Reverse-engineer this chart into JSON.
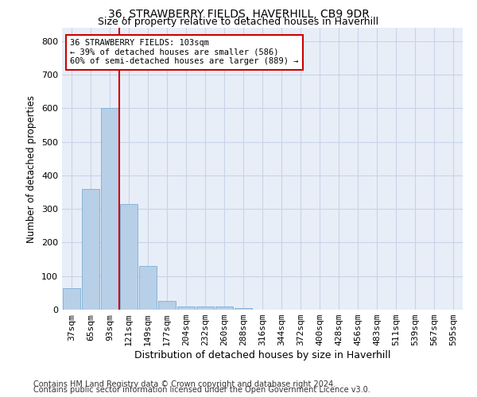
{
  "title": "36, STRAWBERRY FIELDS, HAVERHILL, CB9 9DR",
  "subtitle": "Size of property relative to detached houses in Haverhill",
  "xlabel": "Distribution of detached houses by size in Haverhill",
  "ylabel": "Number of detached properties",
  "bar_labels": [
    "37sqm",
    "65sqm",
    "93sqm",
    "121sqm",
    "149sqm",
    "177sqm",
    "204sqm",
    "232sqm",
    "260sqm",
    "288sqm",
    "316sqm",
    "344sqm",
    "372sqm",
    "400sqm",
    "428sqm",
    "456sqm",
    "483sqm",
    "511sqm",
    "539sqm",
    "567sqm",
    "595sqm"
  ],
  "bar_values": [
    65,
    360,
    600,
    315,
    130,
    25,
    10,
    10,
    10,
    5,
    0,
    0,
    0,
    0,
    0,
    0,
    0,
    0,
    0,
    0,
    0
  ],
  "bar_color": "#b8cfe8",
  "bar_edge_color": "#7aadd4",
  "vline_x": 2.5,
  "vline_color": "#cc0000",
  "annotation_text": "36 STRAWBERRY FIELDS: 103sqm\n← 39% of detached houses are smaller (586)\n60% of semi-detached houses are larger (889) →",
  "annotation_box_color": "#ffffff",
  "annotation_box_edge": "#cc0000",
  "ylim": [
    0,
    840
  ],
  "yticks": [
    0,
    100,
    200,
    300,
    400,
    500,
    600,
    700,
    800
  ],
  "background_color": "#e8eef7",
  "grid_color": "#c8d4e8",
  "footer_line1": "Contains HM Land Registry data © Crown copyright and database right 2024.",
  "footer_line2": "Contains public sector information licensed under the Open Government Licence v3.0.",
  "title_fontsize": 10,
  "subtitle_fontsize": 9,
  "xlabel_fontsize": 9,
  "ylabel_fontsize": 8.5,
  "tick_fontsize": 8,
  "footer_fontsize": 7
}
